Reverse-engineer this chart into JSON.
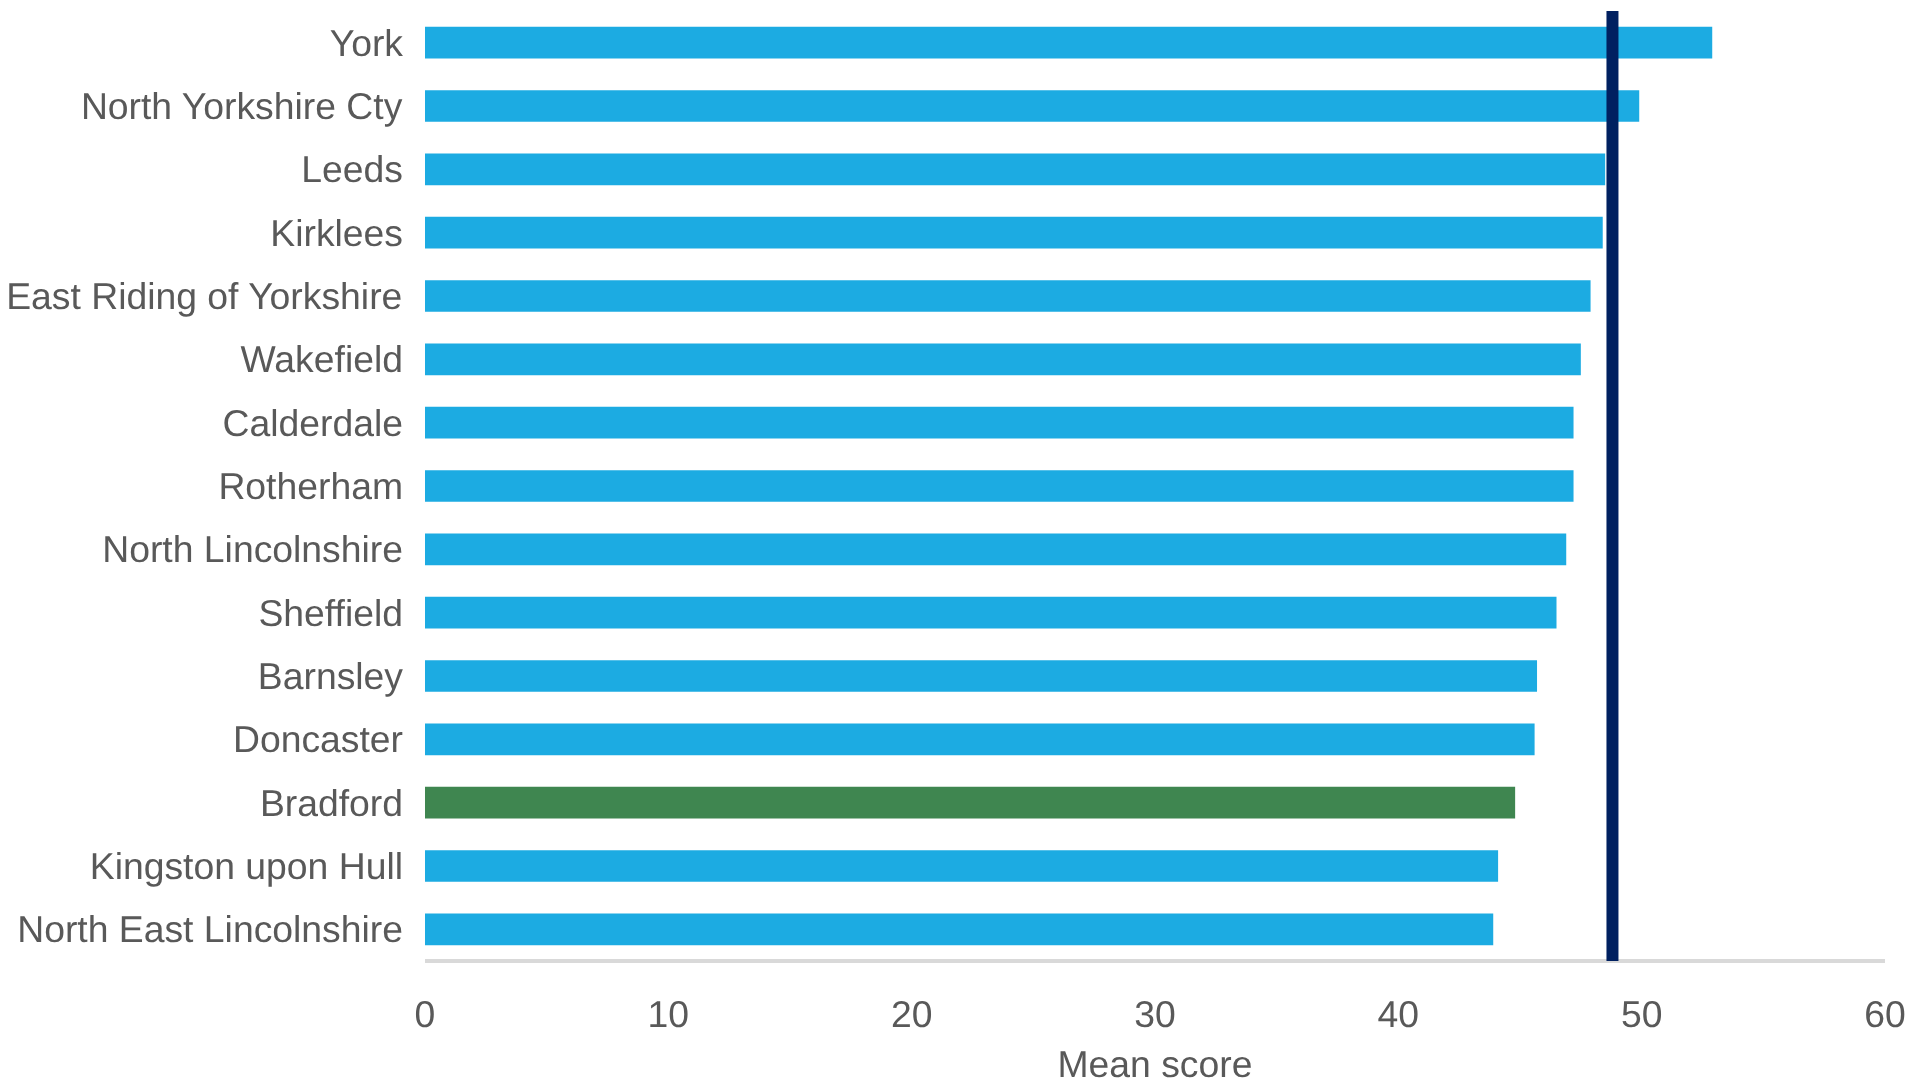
{
  "chart_data": {
    "type": "bar",
    "orientation": "horizontal",
    "xlabel": "Mean score",
    "categories": [
      "York",
      "North Yorkshire Cty",
      "Leeds",
      "Kirklees",
      "East Riding of Yorkshire",
      "Wakefield",
      "Calderdale",
      "Rotherham",
      "North Lincolnshire",
      "Sheffield",
      "Barnsley",
      "Doncaster",
      "Bradford",
      "Kingston upon Hull",
      "North East Lincolnshire"
    ],
    "values": [
      52.9,
      49.9,
      48.5,
      48.4,
      47.9,
      47.5,
      47.2,
      47.2,
      46.9,
      46.5,
      45.7,
      45.6,
      44.8,
      44.1,
      43.9
    ],
    "colors": [
      "#1cabe2",
      "#1cabe2",
      "#1cabe2",
      "#1cabe2",
      "#1cabe2",
      "#1cabe2",
      "#1cabe2",
      "#1cabe2",
      "#1cabe2",
      "#1cabe2",
      "#1cabe2",
      "#1cabe2",
      "#3f8650",
      "#1cabe2",
      "#1cabe2"
    ],
    "xlim": [
      0,
      60
    ],
    "xticks": [
      0,
      10,
      20,
      30,
      40,
      50,
      60
    ],
    "ref_lines": [
      {
        "axis": "x",
        "value": 48.8,
        "color": "#002060"
      }
    ],
    "grid": false
  }
}
